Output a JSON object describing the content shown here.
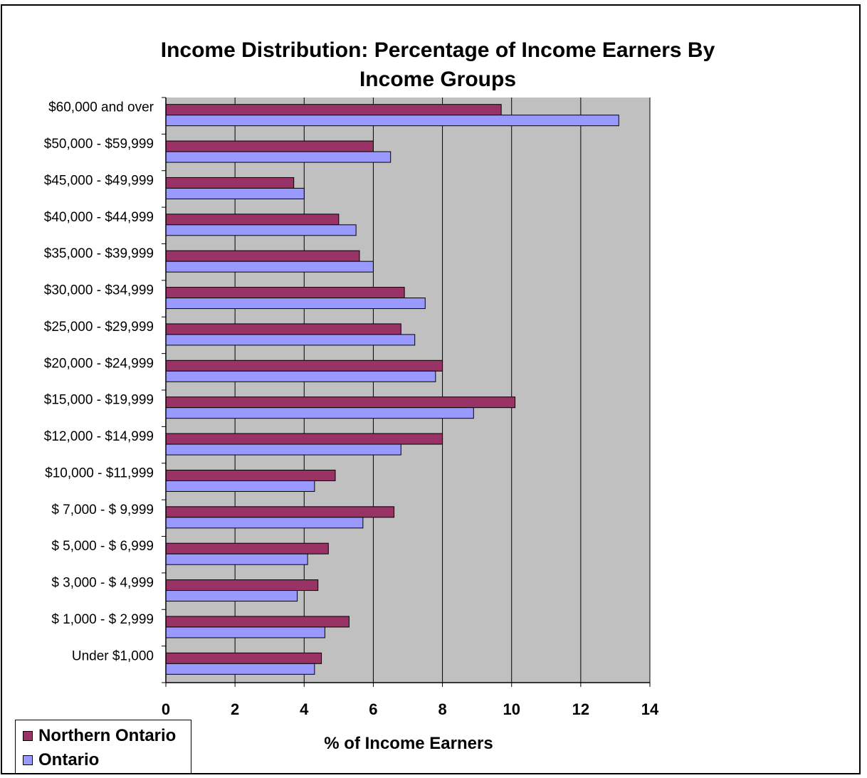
{
  "chart_data": {
    "type": "bar",
    "orientation": "horizontal",
    "title": "Income Distribution: Percentage of Income Earners By Income Groups",
    "title_lines": [
      "Income Distribution: Percentage of Income Earners By",
      "Income Groups"
    ],
    "xlabel": "% of Income Earners",
    "ylabel": "",
    "xlim": [
      0,
      14
    ],
    "xticks": [
      "0",
      "2",
      "4",
      "6",
      "8",
      "10",
      "12",
      "14"
    ],
    "grid": "vertical",
    "plot_background": "#c0c0c0",
    "legend_position": "bottom-left",
    "categories": [
      "$60,000 and over",
      "$50,000 - $59,999",
      "$45,000 - $49,999",
      "$40,000 - $44,999",
      "$35,000 - $39,999",
      "$30,000 - $34,999",
      "$25,000 - $29,999",
      "$20,000 - $24,999",
      "$15,000 - $19,999",
      "$12,000 - $14,999",
      "$10,000 - $11,999",
      "$ 7,000 - $ 9,999",
      "$ 5,000 - $ 6,999",
      "$ 3,000 - $ 4,999",
      "$ 1,000 - $ 2,999",
      "Under $1,000"
    ],
    "series": [
      {
        "name": "Northern Ontario",
        "color": "#993366",
        "values": [
          9.7,
          6.0,
          3.7,
          5.0,
          5.6,
          6.9,
          6.8,
          8.0,
          10.1,
          8.0,
          4.9,
          6.6,
          4.7,
          4.4,
          5.3,
          4.5
        ]
      },
      {
        "name": "Ontario",
        "color": "#9999ff",
        "values": [
          13.1,
          6.5,
          4.0,
          5.5,
          6.0,
          7.5,
          7.2,
          7.8,
          8.9,
          6.8,
          4.3,
          5.7,
          4.1,
          3.8,
          4.6,
          4.3
        ]
      }
    ]
  }
}
